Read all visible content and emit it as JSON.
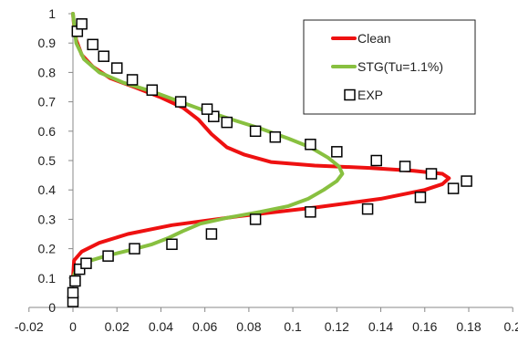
{
  "chart_data": {
    "type": "line",
    "title": "",
    "xlabel": "",
    "ylabel": "",
    "xlim": [
      -0.02,
      0.2
    ],
    "ylim": [
      0,
      1
    ],
    "xticks": [
      "-0.02",
      "0",
      "0.02",
      "0.04",
      "0.06",
      "0.08",
      "0.1",
      "0.12",
      "0.14",
      "0.16",
      "0.18",
      "0.2"
    ],
    "yticks": [
      "0",
      "0.1",
      "0.2",
      "0.3",
      "0.4",
      "0.5",
      "0.6",
      "0.7",
      "0.8",
      "0.9",
      "1"
    ],
    "grid": false,
    "legend_position": "top-right",
    "series": [
      {
        "name": "Clean",
        "kind": "line",
        "color": "#ee1111",
        "points": [
          [
            0.0,
            0.1
          ],
          [
            0.0005,
            0.16
          ],
          [
            0.004,
            0.19
          ],
          [
            0.012,
            0.22
          ],
          [
            0.025,
            0.25
          ],
          [
            0.045,
            0.28
          ],
          [
            0.075,
            0.31
          ],
          [
            0.11,
            0.34
          ],
          [
            0.14,
            0.37
          ],
          [
            0.16,
            0.4
          ],
          [
            0.168,
            0.42
          ],
          [
            0.171,
            0.44
          ],
          [
            0.168,
            0.455
          ],
          [
            0.155,
            0.465
          ],
          [
            0.135,
            0.475
          ],
          [
            0.11,
            0.483
          ],
          [
            0.09,
            0.495
          ],
          [
            0.078,
            0.52
          ],
          [
            0.07,
            0.545
          ],
          [
            0.063,
            0.59
          ],
          [
            0.057,
            0.64
          ],
          [
            0.05,
            0.68
          ],
          [
            0.04,
            0.715
          ],
          [
            0.028,
            0.75
          ],
          [
            0.017,
            0.78
          ],
          [
            0.009,
            0.82
          ],
          [
            0.004,
            0.86
          ],
          [
            0.0015,
            0.91
          ],
          [
            0.0005,
            0.96
          ],
          [
            0.0,
            1.0
          ]
        ]
      },
      {
        "name": "STG(Tu=1.1%)",
        "kind": "line",
        "color": "#88c040",
        "points": [
          [
            0.0,
            0.1
          ],
          [
            0.0015,
            0.13
          ],
          [
            0.006,
            0.155
          ],
          [
            0.015,
            0.175
          ],
          [
            0.026,
            0.195
          ],
          [
            0.036,
            0.215
          ],
          [
            0.043,
            0.235
          ],
          [
            0.05,
            0.26
          ],
          [
            0.058,
            0.285
          ],
          [
            0.07,
            0.305
          ],
          [
            0.085,
            0.325
          ],
          [
            0.098,
            0.345
          ],
          [
            0.107,
            0.37
          ],
          [
            0.114,
            0.4
          ],
          [
            0.12,
            0.43
          ],
          [
            0.1225,
            0.455
          ],
          [
            0.121,
            0.48
          ],
          [
            0.116,
            0.51
          ],
          [
            0.108,
            0.545
          ],
          [
            0.098,
            0.575
          ],
          [
            0.085,
            0.61
          ],
          [
            0.07,
            0.645
          ],
          [
            0.058,
            0.675
          ],
          [
            0.047,
            0.705
          ],
          [
            0.036,
            0.735
          ],
          [
            0.023,
            0.765
          ],
          [
            0.012,
            0.8
          ],
          [
            0.005,
            0.845
          ],
          [
            0.0015,
            0.9
          ],
          [
            0.0,
            1.0
          ]
        ]
      },
      {
        "name": "EXP",
        "kind": "scatter",
        "color": "#000000",
        "points": [
          [
            0.0,
            0.02
          ],
          [
            0.0,
            0.05
          ],
          [
            0.001,
            0.09
          ],
          [
            0.003,
            0.13
          ],
          [
            0.006,
            0.15
          ],
          [
            0.016,
            0.175
          ],
          [
            0.028,
            0.2
          ],
          [
            0.045,
            0.215
          ],
          [
            0.063,
            0.25
          ],
          [
            0.083,
            0.3
          ],
          [
            0.108,
            0.325
          ],
          [
            0.134,
            0.335
          ],
          [
            0.158,
            0.375
          ],
          [
            0.173,
            0.405
          ],
          [
            0.179,
            0.43
          ],
          [
            0.163,
            0.455
          ],
          [
            0.151,
            0.48
          ],
          [
            0.138,
            0.5
          ],
          [
            0.12,
            0.53
          ],
          [
            0.108,
            0.555
          ],
          [
            0.092,
            0.58
          ],
          [
            0.083,
            0.6
          ],
          [
            0.07,
            0.63
          ],
          [
            0.064,
            0.65
          ],
          [
            0.061,
            0.675
          ],
          [
            0.049,
            0.7
          ],
          [
            0.036,
            0.74
          ],
          [
            0.027,
            0.775
          ],
          [
            0.02,
            0.815
          ],
          [
            0.014,
            0.855
          ],
          [
            0.009,
            0.895
          ],
          [
            0.002,
            0.94
          ],
          [
            0.004,
            0.965
          ]
        ]
      }
    ]
  }
}
